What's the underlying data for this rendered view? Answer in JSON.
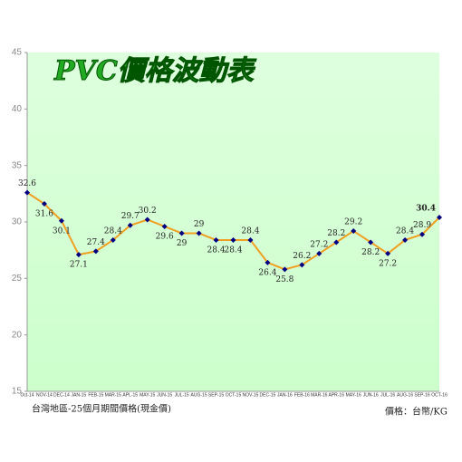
{
  "chart_data": {
    "type": "line",
    "title": "PVC價格波動表",
    "footnote_left": "台灣地區-25個月期間價格(現金價)",
    "footnote_right": "價格：台幣/KG",
    "categories": [
      "Oct-14",
      "NOV-14",
      "DEC-14",
      "JAN-15",
      "FEB-15",
      "MAR-15",
      "APL-15",
      "MAY-15",
      "JUN-15",
      "JUL-15",
      "AUG-15",
      "SEP-15",
      "OCT-15",
      "NOV-15",
      "DEC-15",
      "JAN-16",
      "FEB-16",
      "MAR-16",
      "APR-16",
      "MAY-16",
      "JUN-16",
      "JUL-16",
      "AUG-16",
      "SEP-16",
      "OCT-16"
    ],
    "series": [
      {
        "name": "PVC",
        "color": "#f0a020",
        "marker_color": "#000080",
        "values": [
          32.6,
          31.6,
          30.1,
          27.1,
          27.4,
          28.4,
          29.7,
          30.2,
          29.6,
          29,
          29,
          28.4,
          28.4,
          28.4,
          26.4,
          25.8,
          26.2,
          27.2,
          28.2,
          29.2,
          28.2,
          27.2,
          28.4,
          28.9,
          30.4
        ]
      }
    ],
    "ylim": [
      15,
      45
    ],
    "yticks": [
      15,
      20,
      25,
      30,
      35,
      40,
      45
    ],
    "grid": false,
    "background": "#ccffcc"
  }
}
